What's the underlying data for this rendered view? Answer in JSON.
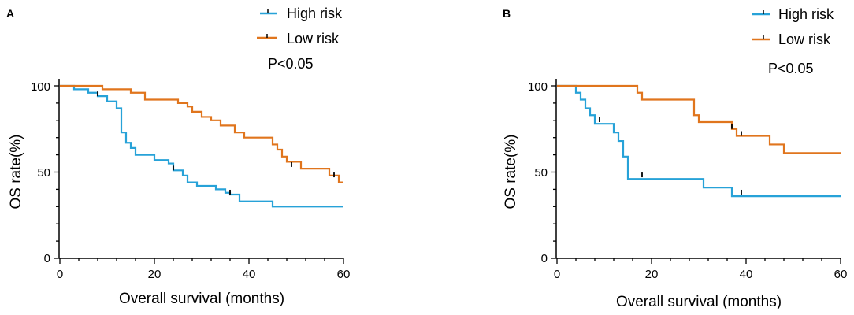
{
  "chart_data": [
    {
      "panel_label": "A",
      "type": "line",
      "subtype": "kaplan-meier",
      "title": "",
      "xlabel": "Overall survival (months)",
      "ylabel": "OS rate(%)",
      "xlim": [
        0,
        60
      ],
      "ylim": [
        0,
        100
      ],
      "xticks": [
        0,
        20,
        40,
        60
      ],
      "yticks": [
        0,
        50,
        100
      ],
      "annotation": "P<0.05",
      "legend_position": "top-center",
      "series": [
        {
          "name": "High risk",
          "color": "#27a2d8",
          "steps": [
            [
              0,
              100
            ],
            [
              3,
              98
            ],
            [
              6,
              96
            ],
            [
              8,
              94
            ],
            [
              10,
              91
            ],
            [
              12,
              87
            ],
            [
              13,
              73
            ],
            [
              14,
              67
            ],
            [
              15,
              64
            ],
            [
              16,
              60
            ],
            [
              20,
              57
            ],
            [
              23,
              55
            ],
            [
              24,
              51
            ],
            [
              26,
              48
            ],
            [
              27,
              44
            ],
            [
              29,
              42
            ],
            [
              33,
              40
            ],
            [
              35,
              38
            ],
            [
              36,
              37
            ],
            [
              38,
              33
            ],
            [
              45,
              30
            ],
            [
              60,
              30
            ]
          ],
          "censored": [
            [
              8,
              94
            ],
            [
              24,
              51
            ],
            [
              36,
              37
            ]
          ]
        },
        {
          "name": "Low risk",
          "color": "#e0751d",
          "steps": [
            [
              0,
              100
            ],
            [
              9,
              98
            ],
            [
              15,
              96
            ],
            [
              18,
              92
            ],
            [
              25,
              90
            ],
            [
              27,
              88
            ],
            [
              28,
              85
            ],
            [
              30,
              82
            ],
            [
              32,
              80
            ],
            [
              34,
              77
            ],
            [
              37,
              73
            ],
            [
              39,
              70
            ],
            [
              45,
              66
            ],
            [
              46,
              63
            ],
            [
              47,
              59
            ],
            [
              48,
              56
            ],
            [
              51,
              52
            ],
            [
              57,
              48
            ],
            [
              59,
              44
            ],
            [
              60,
              44
            ]
          ],
          "censored": [
            [
              49,
              53
            ],
            [
              58,
              47
            ]
          ]
        }
      ]
    },
    {
      "panel_label": "B",
      "type": "line",
      "subtype": "kaplan-meier",
      "title": "",
      "xlabel": "Overall survival (months)",
      "ylabel": "OS rate(%)",
      "xlim": [
        0,
        60
      ],
      "ylim": [
        0,
        100
      ],
      "xticks": [
        0,
        20,
        40,
        60
      ],
      "yticks": [
        0,
        50,
        100
      ],
      "annotation": "P<0.05",
      "legend_position": "top-right",
      "series": [
        {
          "name": "High risk",
          "color": "#27a2d8",
          "steps": [
            [
              0,
              100
            ],
            [
              4,
              96
            ],
            [
              5,
              92
            ],
            [
              6,
              87
            ],
            [
              7,
              83
            ],
            [
              8,
              78
            ],
            [
              12,
              73
            ],
            [
              13,
              68
            ],
            [
              14,
              59
            ],
            [
              15,
              46
            ],
            [
              31,
              41
            ],
            [
              37,
              36
            ],
            [
              60,
              36
            ]
          ],
          "censored": [
            [
              9,
              79
            ],
            [
              18,
              47
            ],
            [
              39,
              37
            ]
          ]
        },
        {
          "name": "Low risk",
          "color": "#e0751d",
          "steps": [
            [
              0,
              100
            ],
            [
              17,
              96
            ],
            [
              18,
              92
            ],
            [
              29,
              83
            ],
            [
              30,
              79
            ],
            [
              37,
              75
            ],
            [
              38,
              71
            ],
            [
              45,
              66
            ],
            [
              48,
              61
            ],
            [
              60,
              61
            ]
          ],
          "censored": [
            [
              37,
              75
            ],
            [
              39,
              71
            ]
          ]
        }
      ]
    }
  ]
}
